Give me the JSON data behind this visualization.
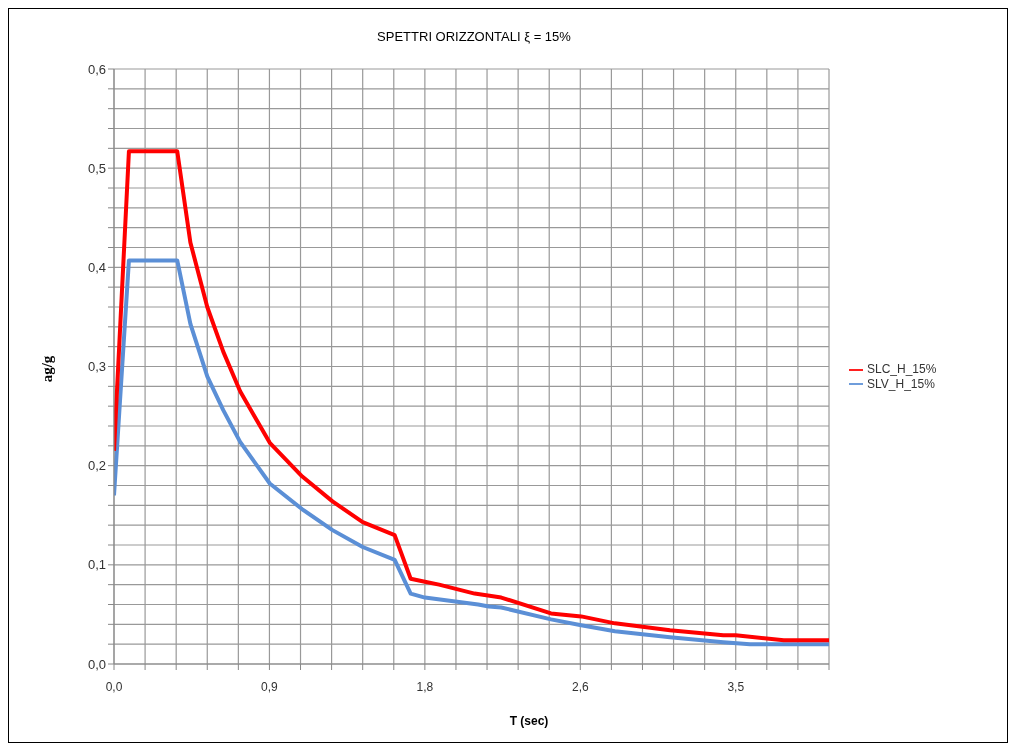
{
  "chart_data": {
    "type": "line",
    "title": "SPETTRI ORIZZONTALI ξ = 15%",
    "xlabel": "T (sec)",
    "ylabel": "ag/g",
    "xlim": [
      0,
      4.025
    ],
    "xticks": [
      {
        "value": 0,
        "label": "0,0"
      },
      {
        "value": 0.175,
        "label": null
      },
      {
        "value": 0.35,
        "label": null
      },
      {
        "value": 0.525,
        "label": null
      },
      {
        "value": 0.7,
        "label": null
      },
      {
        "value": 0.875,
        "label": "0,9"
      },
      {
        "value": 1.05,
        "label": null
      },
      {
        "value": 1.225,
        "label": null
      },
      {
        "value": 1.4,
        "label": null
      },
      {
        "value": 1.575,
        "label": null
      },
      {
        "value": 1.75,
        "label": "1,8"
      },
      {
        "value": 1.925,
        "label": null
      },
      {
        "value": 2.1,
        "label": null
      },
      {
        "value": 2.275,
        "label": null
      },
      {
        "value": 2.45,
        "label": null
      },
      {
        "value": 2.625,
        "label": "2,6"
      },
      {
        "value": 2.8,
        "label": null
      },
      {
        "value": 2.975,
        "label": null
      },
      {
        "value": 3.15,
        "label": null
      },
      {
        "value": 3.325,
        "label": null
      },
      {
        "value": 3.5,
        "label": "3,5"
      },
      {
        "value": 3.675,
        "label": null
      },
      {
        "value": 3.85,
        "label": null
      },
      {
        "value": 4.025,
        "label": null
      }
    ],
    "ylim": [
      0,
      0.6
    ],
    "yticks": [
      {
        "value": 0,
        "label": "0,0"
      },
      {
        "value": 0.02,
        "label": null
      },
      {
        "value": 0.04,
        "label": null
      },
      {
        "value": 0.06,
        "label": null
      },
      {
        "value": 0.08,
        "label": null
      },
      {
        "value": 0.1,
        "label": "0,1"
      },
      {
        "value": 0.12,
        "label": null
      },
      {
        "value": 0.14,
        "label": null
      },
      {
        "value": 0.16,
        "label": null
      },
      {
        "value": 0.18,
        "label": null
      },
      {
        "value": 0.2,
        "label": "0,2"
      },
      {
        "value": 0.22,
        "label": null
      },
      {
        "value": 0.24,
        "label": null
      },
      {
        "value": 0.26,
        "label": null
      },
      {
        "value": 0.28,
        "label": null
      },
      {
        "value": 0.3,
        "label": "0,3"
      },
      {
        "value": 0.32,
        "label": null
      },
      {
        "value": 0.34,
        "label": null
      },
      {
        "value": 0.36,
        "label": null
      },
      {
        "value": 0.38,
        "label": null
      },
      {
        "value": 0.4,
        "label": "0,4"
      },
      {
        "value": 0.42,
        "label": null
      },
      {
        "value": 0.44,
        "label": null
      },
      {
        "value": 0.46,
        "label": null
      },
      {
        "value": 0.48,
        "label": null
      },
      {
        "value": 0.5,
        "label": "0,5"
      },
      {
        "value": 0.52,
        "label": null
      },
      {
        "value": 0.54,
        "label": null
      },
      {
        "value": 0.56,
        "label": null
      },
      {
        "value": 0.58,
        "label": null
      },
      {
        "value": 0.6,
        "label": "0,6"
      }
    ],
    "grid": true,
    "legend": "right",
    "marker": "none",
    "series": [
      {
        "name": "SLV_H_15%",
        "color": "#5b8fd6",
        "x": [
          0,
          0.084,
          0.356,
          0.43,
          0.525,
          0.615,
          0.71,
          0.877,
          1.06,
          1.23,
          1.4,
          1.58,
          1.67,
          1.75,
          2.05,
          2.11,
          2.18,
          2.46,
          2.63,
          2.82,
          3.13,
          3.43,
          3.58,
          3.77,
          4.025
        ],
        "values": [
          0.17,
          0.407,
          0.407,
          0.343,
          0.29,
          0.256,
          0.224,
          0.182,
          0.156,
          0.135,
          0.118,
          0.105,
          0.071,
          0.067,
          0.06,
          0.058,
          0.057,
          0.045,
          0.039,
          0.033,
          0.027,
          0.022,
          0.02,
          0.02,
          0.02
        ]
      },
      {
        "name": "SLC_H_15%",
        "color": "#ff0000",
        "x": [
          0,
          0.084,
          0.356,
          0.43,
          0.525,
          0.615,
          0.71,
          0.877,
          1.06,
          1.23,
          1.4,
          1.58,
          1.67,
          1.75,
          1.83,
          2.03,
          2.18,
          2.46,
          2.63,
          2.82,
          3.13,
          3.43,
          3.5,
          3.77,
          4.025
        ],
        "values": [
          0.215,
          0.517,
          0.517,
          0.425,
          0.36,
          0.315,
          0.275,
          0.223,
          0.189,
          0.164,
          0.143,
          0.13,
          0.086,
          0.083,
          0.08,
          0.071,
          0.067,
          0.051,
          0.048,
          0.041,
          0.034,
          0.029,
          0.029,
          0.024,
          0.024
        ]
      }
    ]
  }
}
